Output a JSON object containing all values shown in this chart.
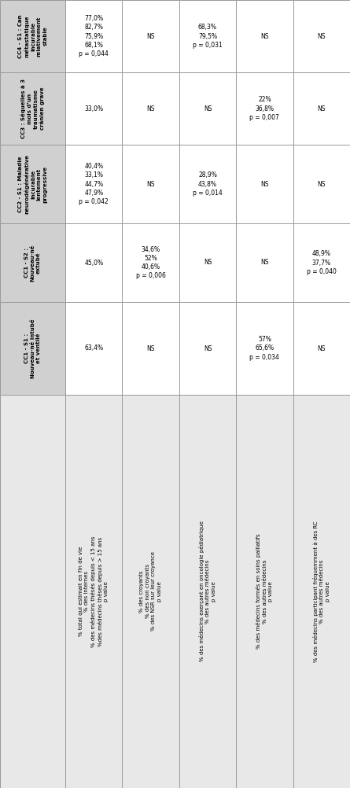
{
  "col_headers": [
    "CC1 - S1 :\nNouveau-né intubé\net ventilé",
    "CC1 - S2 :\nNouveau-né\nextubé",
    "CC2 - S1 : Maladie\nneurodégénérative\nincurable\nlentement\nprogressive",
    "CC3 : Séquelles à 3\nmois d’un\ntraumatisme\ncrânien grave",
    "CC4 - S1 : Can\nmétastatique\nincurable\nrelativement\nstable"
  ],
  "row_groups": [
    {
      "label": "% total qui estimait en fin de vie\n% des internes\n% des médecins thésés depuis < 15 ans\n%des médecins thèses depuis > 15 ans\np value",
      "cells": [
        "63,4%",
        "45,0%",
        "40,4%\n33,1%\n44,7%\n47,9%\np = 0,042",
        "33,0%",
        "77,0%\n82,7%\n75,9%\n68,1%\np = 0,044"
      ]
    },
    {
      "label": "% des croyants\n% des non croyants\n% des NSR sur leur croyance\np value",
      "cells": [
        "NS",
        "34,6%\n52%\n40,6%\np = 0,006",
        "NS",
        "NS",
        "NS"
      ]
    },
    {
      "label": "% des médecins exerçant en oncologie pédiatrique\n% des autres médecins\np value",
      "cells": [
        "NS",
        "NS",
        "28,9%\n43,8%\np = 0,014",
        "NS",
        "68,3%\n79,5%\np = 0,031"
      ]
    },
    {
      "label": "% des médecins formés en soins palliatifs\n% des autres médecins\np value",
      "cells": [
        "57%\n65,6%\np = 0,034",
        "NS",
        "NS",
        "22%\n36,8%\np = 0,007",
        "NS"
      ]
    },
    {
      "label": "% des médecins participant fréquemment à des RC\n% des autres médecins\np value",
      "cells": [
        "NS",
        "48,9%\n37,7%\np = 0,040",
        "NS",
        "NS",
        "NS"
      ]
    }
  ],
  "header_bg": "#d0d0d0",
  "row_label_bg": "#e8e8e8",
  "cell_bg_even": "#ffffff",
  "cell_bg_odd": "#f0f0f0",
  "border_color": "#999999",
  "text_color": "#000000"
}
